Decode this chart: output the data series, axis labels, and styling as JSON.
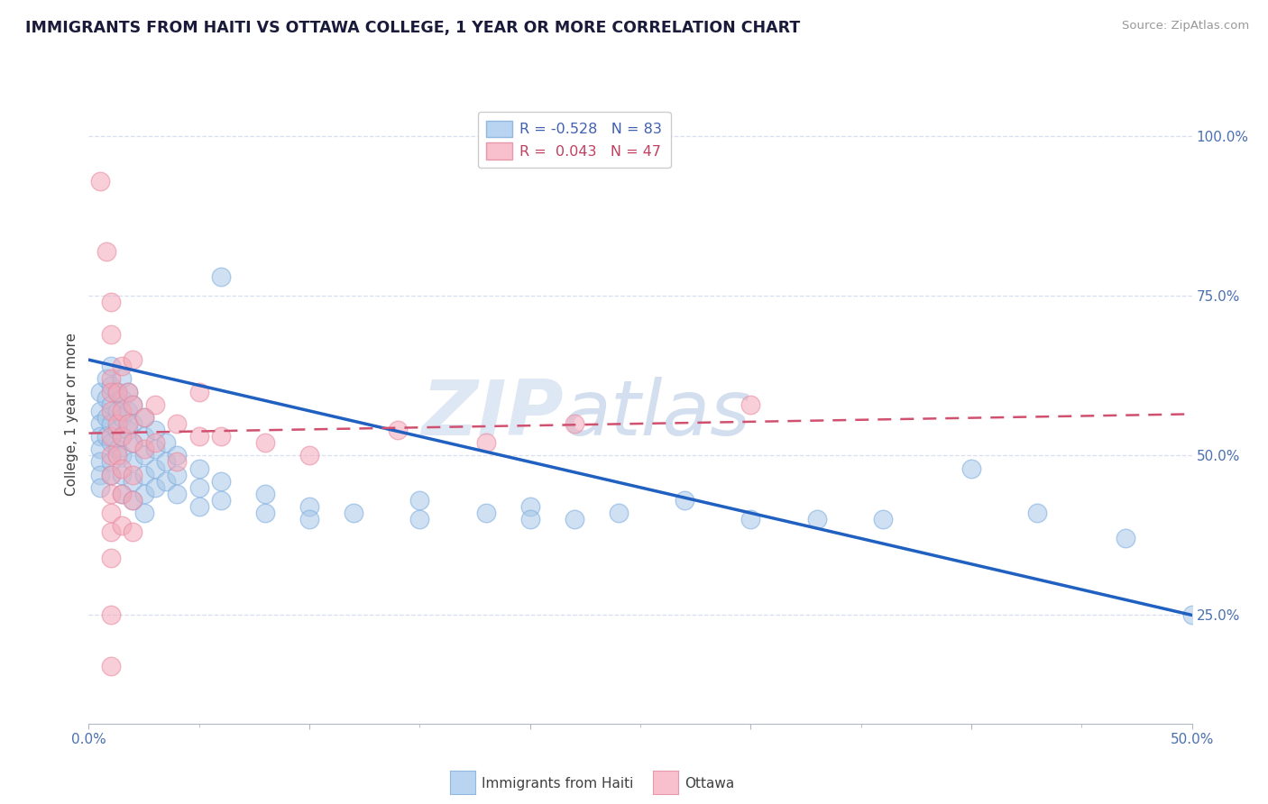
{
  "title": "IMMIGRANTS FROM HAITI VS OTTAWA COLLEGE, 1 YEAR OR MORE CORRELATION CHART",
  "source_text": "Source: ZipAtlas.com",
  "ylabel": "College, 1 year or more",
  "xlim": [
    0.0,
    0.5
  ],
  "ylim": [
    0.08,
    1.05
  ],
  "ytick_labels": [
    "25.0%",
    "50.0%",
    "75.0%",
    "100.0%"
  ],
  "ytick_vals": [
    0.25,
    0.5,
    0.75,
    1.0
  ],
  "haiti_color": "#a8c8e8",
  "ottawa_color": "#f4a8b8",
  "haiti_line_color": "#2060c0",
  "ottawa_line_color": "#d05070",
  "watermark_part1": "ZIP",
  "watermark_part2": "atlas",
  "background_color": "#ffffff",
  "grid_color": "#d8dff0",
  "haiti_line_x": [
    0.0,
    0.5
  ],
  "haiti_line_y": [
    0.65,
    0.25
  ],
  "ottawa_line_x": [
    0.0,
    0.5
  ],
  "ottawa_line_y": [
    0.535,
    0.565
  ],
  "haiti_scatter": [
    [
      0.005,
      0.6
    ],
    [
      0.005,
      0.57
    ],
    [
      0.005,
      0.55
    ],
    [
      0.005,
      0.53
    ],
    [
      0.005,
      0.51
    ],
    [
      0.005,
      0.49
    ],
    [
      0.005,
      0.47
    ],
    [
      0.005,
      0.45
    ],
    [
      0.008,
      0.62
    ],
    [
      0.008,
      0.59
    ],
    [
      0.008,
      0.56
    ],
    [
      0.008,
      0.53
    ],
    [
      0.01,
      0.64
    ],
    [
      0.01,
      0.61
    ],
    [
      0.01,
      0.58
    ],
    [
      0.01,
      0.55
    ],
    [
      0.01,
      0.52
    ],
    [
      0.01,
      0.49
    ],
    [
      0.01,
      0.47
    ],
    [
      0.013,
      0.6
    ],
    [
      0.013,
      0.57
    ],
    [
      0.013,
      0.54
    ],
    [
      0.013,
      0.51
    ],
    [
      0.015,
      0.62
    ],
    [
      0.015,
      0.59
    ],
    [
      0.015,
      0.56
    ],
    [
      0.015,
      0.53
    ],
    [
      0.015,
      0.5
    ],
    [
      0.015,
      0.47
    ],
    [
      0.015,
      0.44
    ],
    [
      0.018,
      0.6
    ],
    [
      0.018,
      0.57
    ],
    [
      0.018,
      0.54
    ],
    [
      0.02,
      0.58
    ],
    [
      0.02,
      0.55
    ],
    [
      0.02,
      0.52
    ],
    [
      0.02,
      0.49
    ],
    [
      0.02,
      0.46
    ],
    [
      0.02,
      0.43
    ],
    [
      0.025,
      0.56
    ],
    [
      0.025,
      0.53
    ],
    [
      0.025,
      0.5
    ],
    [
      0.025,
      0.47
    ],
    [
      0.025,
      0.44
    ],
    [
      0.025,
      0.41
    ],
    [
      0.03,
      0.54
    ],
    [
      0.03,
      0.51
    ],
    [
      0.03,
      0.48
    ],
    [
      0.03,
      0.45
    ],
    [
      0.035,
      0.52
    ],
    [
      0.035,
      0.49
    ],
    [
      0.035,
      0.46
    ],
    [
      0.04,
      0.5
    ],
    [
      0.04,
      0.47
    ],
    [
      0.04,
      0.44
    ],
    [
      0.05,
      0.48
    ],
    [
      0.05,
      0.45
    ],
    [
      0.05,
      0.42
    ],
    [
      0.06,
      0.78
    ],
    [
      0.06,
      0.46
    ],
    [
      0.06,
      0.43
    ],
    [
      0.08,
      0.44
    ],
    [
      0.08,
      0.41
    ],
    [
      0.1,
      0.42
    ],
    [
      0.1,
      0.4
    ],
    [
      0.12,
      0.41
    ],
    [
      0.15,
      0.4
    ],
    [
      0.15,
      0.43
    ],
    [
      0.18,
      0.41
    ],
    [
      0.2,
      0.42
    ],
    [
      0.2,
      0.4
    ],
    [
      0.22,
      0.4
    ],
    [
      0.24,
      0.41
    ],
    [
      0.27,
      0.43
    ],
    [
      0.3,
      0.4
    ],
    [
      0.33,
      0.4
    ],
    [
      0.36,
      0.4
    ],
    [
      0.4,
      0.48
    ],
    [
      0.43,
      0.41
    ],
    [
      0.47,
      0.37
    ],
    [
      0.5,
      0.25
    ]
  ],
  "ottawa_scatter": [
    [
      0.005,
      0.93
    ],
    [
      0.008,
      0.82
    ],
    [
      0.01,
      0.74
    ],
    [
      0.01,
      0.69
    ],
    [
      0.01,
      0.62
    ],
    [
      0.01,
      0.6
    ],
    [
      0.01,
      0.57
    ],
    [
      0.01,
      0.53
    ],
    [
      0.01,
      0.5
    ],
    [
      0.01,
      0.47
    ],
    [
      0.01,
      0.44
    ],
    [
      0.01,
      0.41
    ],
    [
      0.01,
      0.38
    ],
    [
      0.01,
      0.34
    ],
    [
      0.01,
      0.25
    ],
    [
      0.01,
      0.17
    ],
    [
      0.013,
      0.6
    ],
    [
      0.013,
      0.55
    ],
    [
      0.013,
      0.5
    ],
    [
      0.015,
      0.64
    ],
    [
      0.015,
      0.57
    ],
    [
      0.015,
      0.53
    ],
    [
      0.015,
      0.48
    ],
    [
      0.015,
      0.44
    ],
    [
      0.015,
      0.39
    ],
    [
      0.018,
      0.6
    ],
    [
      0.018,
      0.55
    ],
    [
      0.02,
      0.65
    ],
    [
      0.02,
      0.58
    ],
    [
      0.02,
      0.52
    ],
    [
      0.02,
      0.47
    ],
    [
      0.02,
      0.43
    ],
    [
      0.02,
      0.38
    ],
    [
      0.025,
      0.56
    ],
    [
      0.025,
      0.51
    ],
    [
      0.03,
      0.58
    ],
    [
      0.03,
      0.52
    ],
    [
      0.04,
      0.55
    ],
    [
      0.04,
      0.49
    ],
    [
      0.05,
      0.6
    ],
    [
      0.05,
      0.53
    ],
    [
      0.06,
      0.53
    ],
    [
      0.08,
      0.52
    ],
    [
      0.1,
      0.5
    ],
    [
      0.14,
      0.54
    ],
    [
      0.18,
      0.52
    ],
    [
      0.22,
      0.55
    ],
    [
      0.3,
      0.58
    ]
  ]
}
